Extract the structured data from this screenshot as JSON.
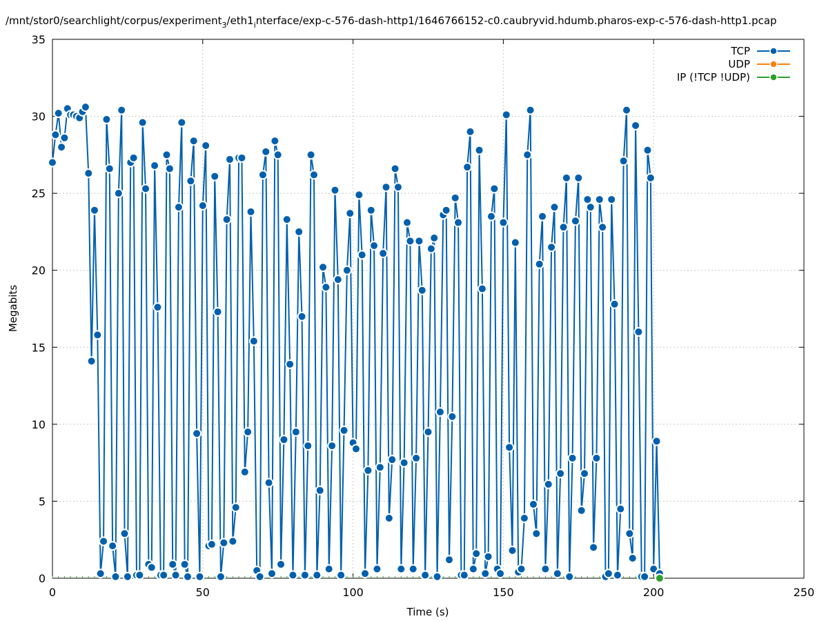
{
  "chart_data": {
    "type": "line",
    "title": "/mnt/stor0/searchlight/corpus/experiment",
    "title_sub": "3",
    "title_mid": "/eth1",
    "title_sub2": "i",
    "title_rest": "nterface/exp-c-576-dash-http1/1646766152-c0.caubryvid.hdumb.pharos-exp-c-576-dash-http1.pcap",
    "xlabel": "Time (s)",
    "ylabel": "Megabits",
    "xlim": [
      0,
      250
    ],
    "ylim": [
      0,
      35
    ],
    "x_ticks": [
      "0",
      "50",
      "100",
      "150",
      "200",
      "250"
    ],
    "y_ticks": [
      "0",
      "5",
      "10",
      "15",
      "20",
      "25",
      "30",
      "35"
    ],
    "grid": true,
    "legend_position": "top-right",
    "colors": {
      "TCP": "#0060ad",
      "UDP": "#ff7f0e",
      "IP": "#2ca02c"
    },
    "series": [
      {
        "name": "TCP",
        "x": [
          0,
          1,
          2,
          3,
          4,
          5,
          6,
          7,
          8,
          9,
          10,
          11,
          12,
          13,
          14,
          15,
          16,
          17,
          18,
          19,
          20,
          21,
          22,
          23,
          24,
          25,
          26,
          27,
          28,
          29,
          30,
          31,
          32,
          33,
          34,
          35,
          36,
          37,
          38,
          39,
          40,
          41,
          42,
          43,
          44,
          45,
          46,
          47,
          48,
          49,
          50,
          51,
          52,
          53,
          54,
          55,
          56,
          57,
          58,
          59,
          60,
          61,
          62,
          63,
          64,
          65,
          66,
          67,
          68,
          69,
          70,
          71,
          72,
          73,
          74,
          75,
          76,
          77,
          78,
          79,
          80,
          81,
          82,
          83,
          84,
          85,
          86,
          87,
          88,
          89,
          90,
          91,
          92,
          93,
          94,
          95,
          96,
          97,
          98,
          99,
          100,
          101,
          102,
          103,
          104,
          105,
          106,
          107,
          108,
          109,
          110,
          111,
          112,
          113,
          114,
          115,
          116,
          117,
          118,
          119,
          120,
          121,
          122,
          123,
          124,
          125,
          126,
          127,
          128,
          129,
          130,
          131,
          132,
          133,
          134,
          135,
          136,
          137,
          138,
          139,
          140,
          141,
          142,
          143,
          144,
          145,
          146,
          147,
          148,
          149,
          150,
          151,
          152,
          153,
          154,
          155,
          156,
          157,
          158,
          159,
          160,
          161,
          162,
          163,
          164,
          165,
          166,
          167,
          168,
          169,
          170,
          171,
          172,
          173,
          174,
          175,
          176,
          177,
          178,
          179,
          180,
          181,
          182,
          183,
          184,
          185,
          186,
          187,
          188,
          189,
          190,
          191,
          192,
          193,
          194,
          195,
          196,
          197,
          198,
          199,
          200,
          201,
          202
        ],
        "values": [
          27.0,
          28.8,
          30.2,
          28.0,
          28.6,
          30.5,
          30.1,
          30.1,
          30.0,
          29.9,
          30.3,
          30.6,
          26.3,
          14.1,
          23.9,
          15.8,
          0.3,
          2.4,
          29.8,
          26.6,
          2.1,
          0.1,
          25.0,
          30.4,
          2.9,
          0.1,
          27.0,
          27.3,
          0.2,
          0.2,
          29.6,
          25.3,
          0.9,
          0.7,
          26.8,
          17.6,
          0.2,
          0.2,
          27.5,
          26.6,
          0.9,
          0.2,
          24.1,
          29.6,
          0.9,
          0.1,
          25.8,
          28.4,
          9.4,
          0.1,
          24.2,
          28.1,
          2.1,
          2.2,
          26.1,
          17.3,
          0.1,
          2.3,
          23.3,
          27.2,
          2.4,
          4.6,
          27.3,
          27.3,
          6.9,
          9.5,
          23.8,
          15.4,
          0.5,
          0.1,
          26.2,
          27.7,
          6.2,
          0.3,
          28.4,
          27.5,
          0.9,
          9.0,
          23.3,
          13.9,
          0.2,
          9.5,
          22.5,
          17.0,
          0.2,
          8.6,
          27.5,
          26.2,
          0.2,
          5.7,
          20.2,
          18.9,
          0.6,
          8.6,
          25.2,
          19.4,
          0.2,
          9.6,
          20.0,
          23.7,
          8.8,
          8.4,
          24.9,
          21.0,
          0.3,
          7.0,
          23.9,
          21.6,
          0.6,
          7.2,
          21.1,
          25.4,
          3.9,
          7.7,
          26.6,
          25.4,
          0.6,
          7.5,
          23.1,
          21.9,
          0.6,
          7.8,
          21.9,
          18.7,
          0.2,
          9.5,
          21.4,
          22.1,
          0.1,
          10.8,
          23.6,
          23.9,
          1.2,
          10.5,
          24.7,
          23.1,
          0.2,
          0.2,
          26.7,
          29.0,
          0.6,
          1.6,
          27.8,
          18.8,
          0.3,
          1.4,
          23.5,
          25.3,
          0.6,
          0.3,
          23.1,
          30.1,
          8.5,
          1.8,
          21.8,
          0.4,
          0.6,
          3.9,
          27.5,
          30.4,
          4.8,
          2.9,
          20.4,
          23.5,
          0.6,
          6.1,
          21.5,
          24.1,
          0.3,
          6.8,
          22.8,
          26.0,
          0.1,
          7.8,
          23.2,
          26.0,
          4.4,
          6.8,
          24.6,
          24.1,
          2.0,
          7.8,
          24.6,
          22.8,
          0.1,
          0.3,
          24.6,
          17.8,
          0.2,
          4.5,
          27.1,
          30.4,
          2.9,
          1.3,
          29.4,
          16.0,
          0.1,
          0.1,
          27.8,
          26.0,
          0.6,
          8.9,
          0.3
        ]
      },
      {
        "name": "UDP",
        "x": [],
        "values": []
      },
      {
        "name": "IP (!TCP  !UDP)",
        "x": [
          202
        ],
        "values": [
          0.0
        ]
      }
    ]
  }
}
